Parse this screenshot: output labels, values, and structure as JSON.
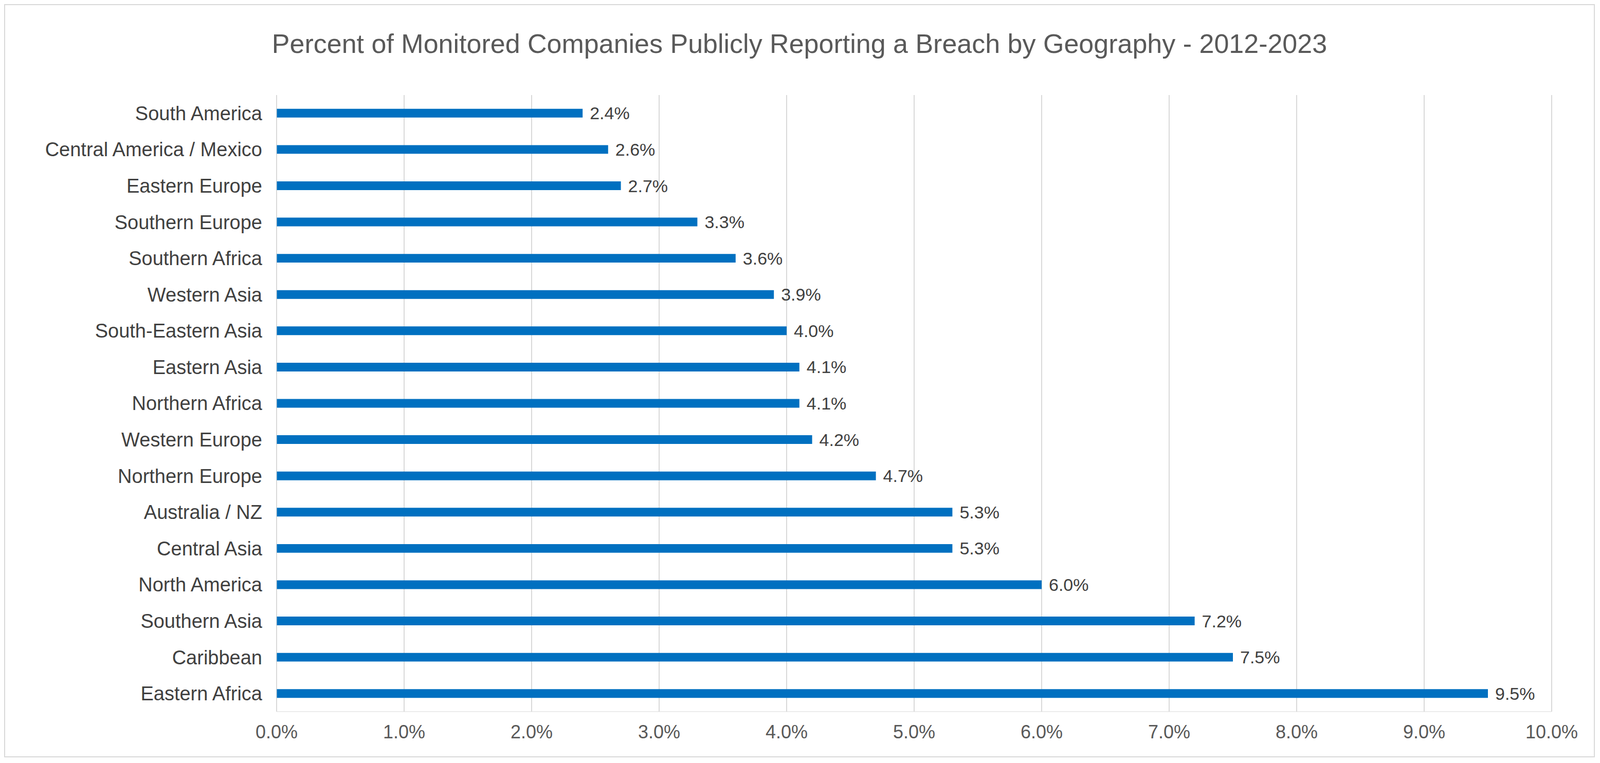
{
  "chart_data": {
    "type": "bar",
    "orientation": "horizontal",
    "title": "Percent of Monitored Companies Publicly Reporting a Breach by Geography - 2012-2023",
    "categories": [
      "South America",
      "Central America / Mexico",
      "Eastern Europe",
      "Southern Europe",
      "Southern Africa",
      "Western Asia",
      "South-Eastern Asia",
      "Eastern Asia",
      "Northern Africa",
      "Western Europe",
      "Northern Europe",
      "Australia / NZ",
      "Central Asia",
      "North America",
      "Southern Asia",
      "Caribbean",
      "Eastern Africa"
    ],
    "values": [
      2.4,
      2.6,
      2.7,
      3.3,
      3.6,
      3.9,
      4.0,
      4.1,
      4.1,
      4.2,
      4.7,
      5.3,
      5.3,
      6.0,
      7.2,
      7.5,
      9.5
    ],
    "value_labels": [
      "2.4%",
      "2.6%",
      "2.7%",
      "3.3%",
      "3.6%",
      "3.9%",
      "4.0%",
      "4.1%",
      "4.1%",
      "4.2%",
      "4.7%",
      "5.3%",
      "5.3%",
      "6.0%",
      "7.2%",
      "7.5%",
      "9.5%"
    ],
    "color": "#0070c0",
    "xlim": [
      0,
      10
    ],
    "xticks": [
      {
        "value": 0,
        "label": "0.0%"
      },
      {
        "value": 1,
        "label": "1.0%"
      },
      {
        "value": 2,
        "label": "2.0%"
      },
      {
        "value": 3,
        "label": "3.0%"
      },
      {
        "value": 4,
        "label": "4.0%"
      },
      {
        "value": 5,
        "label": "5.0%"
      },
      {
        "value": 6,
        "label": "6.0%"
      },
      {
        "value": 7,
        "label": "7.0%"
      },
      {
        "value": 8,
        "label": "8.0%"
      },
      {
        "value": 9,
        "label": "9.0%"
      },
      {
        "value": 10,
        "label": "10.0%"
      }
    ],
    "grid": true,
    "data_labels": true
  }
}
